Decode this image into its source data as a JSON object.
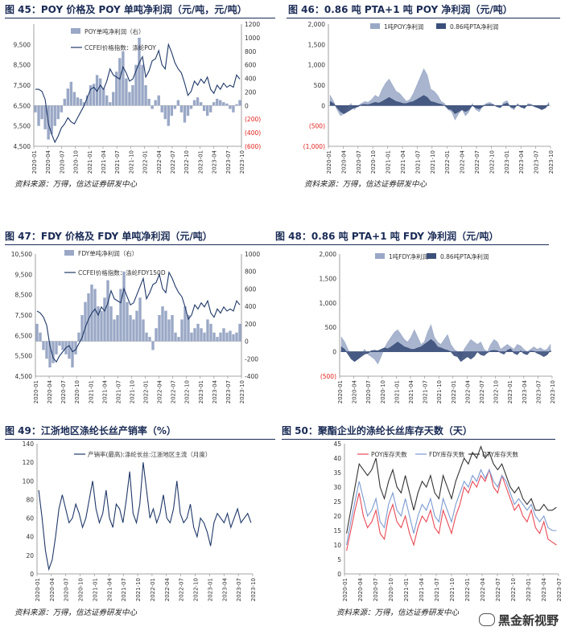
{
  "source_text": "资料来源：万得，信达证券研发中心",
  "watermark": "黑金新视野",
  "chart_data": [
    {
      "id": "c45",
      "title": "图 45：POY 价格及 POY 单吨净利润（元/吨，元/吨）",
      "type": "line+bar",
      "x_ticks": [
        "2020-01",
        "2020-04",
        "2020-07",
        "2020-10",
        "2021-01",
        "2021-04",
        "2021-07",
        "2021-10",
        "2022-01",
        "2022-04",
        "2022-07",
        "2022-10",
        "2023-01",
        "2023-04",
        "2023-07",
        "2023-10"
      ],
      "y_left": {
        "min": 4500,
        "max": 10500,
        "ticks": [
          "4,500",
          "5,500",
          "6,500",
          "7,500",
          "8,500",
          "9,500"
        ]
      },
      "y_right": {
        "min": -600,
        "max": 1200,
        "ticks": [
          "1200",
          "1000",
          "800",
          "600",
          "400",
          "200",
          "0",
          "(200)",
          "(400)",
          "(600)"
        ],
        "neg_color": "#e0201b"
      },
      "series": [
        {
          "name": "POY单吨净利润（右）",
          "kind": "bar",
          "axis": "right",
          "color": "#9aa8c6",
          "values": [
            -100,
            -300,
            -200,
            -350,
            -500,
            -420,
            -300,
            -200,
            -100,
            100,
            250,
            350,
            200,
            120,
            100,
            50,
            150,
            300,
            320,
            450,
            400,
            250,
            150,
            50,
            200,
            500,
            700,
            800,
            400,
            200,
            300,
            600,
            1000,
            600,
            300,
            100,
            -50,
            80,
            150,
            -100,
            -200,
            -300,
            -150,
            -50,
            80,
            -100,
            -250,
            -150,
            -50,
            80,
            120,
            50,
            -80,
            -150,
            -100,
            50,
            100,
            80,
            50,
            30,
            -50,
            -100,
            20,
            80
          ]
        },
        {
          "name": "CCFEI价格指数：涤纶POY",
          "kind": "line",
          "axis": "left",
          "color": "#1f3868",
          "values": [
            7300,
            7300,
            7200,
            6800,
            5600,
            5100,
            4700,
            5000,
            5400,
            5600,
            5900,
            5700,
            5600,
            5900,
            6200,
            6500,
            6900,
            7300,
            7400,
            7200,
            7500,
            7300,
            7700,
            8300,
            8000,
            7900,
            7800,
            8400,
            8100,
            7700,
            7800,
            8200,
            8600,
            8900,
            7900,
            8200,
            8700,
            8800,
            9200,
            8500,
            8300,
            9500,
            9100,
            8600,
            8300,
            8100,
            7600,
            7000,
            7200,
            7700,
            7500,
            7800,
            7600,
            7900,
            7300,
            7100,
            7500,
            7300,
            7600,
            7400,
            7500,
            7400,
            8000,
            7800
          ]
        }
      ]
    },
    {
      "id": "c46",
      "title": "图 46：0.86 吨 PTA+1 吨 POY 净利润（元/吨）",
      "type": "area",
      "x_ticks": [
        "2020-01",
        "2020-04",
        "2020-07",
        "2020-10",
        "2021-01",
        "2021-04",
        "2021-07",
        "2021-10",
        "2022-01",
        "2022-04",
        "2022-07",
        "2022-10",
        "2023-01",
        "2023-04",
        "2023-07",
        "2023-10"
      ],
      "y_left": {
        "min": -1000,
        "max": 2000,
        "ticks": [
          "2,000",
          "1,500",
          "1,000",
          "500",
          "0",
          "(500)",
          "(1,000)"
        ],
        "neg_color": "#e0201b"
      },
      "series": [
        {
          "name": "1吨POY净利润",
          "kind": "area",
          "color": "#9aa8c6",
          "values": [
            250,
            100,
            -100,
            -250,
            -200,
            -50,
            50,
            -100,
            0,
            50,
            100,
            80,
            150,
            250,
            200,
            400,
            550,
            650,
            500,
            350,
            300,
            200,
            100,
            150,
            300,
            500,
            700,
            900,
            750,
            400,
            350,
            250,
            100,
            50,
            -100,
            -150,
            -350,
            -200,
            -100,
            -250,
            -150,
            50,
            -100,
            -150,
            0,
            50,
            80,
            30,
            -30,
            -50,
            80,
            120,
            -50,
            -100,
            50,
            -30,
            -80,
            50,
            30,
            -20,
            -50,
            -100,
            -50,
            80
          ]
        },
        {
          "name": "0.86吨PTA净利润",
          "kind": "area",
          "color": "#3b4f7a",
          "values": [
            100,
            50,
            -50,
            -150,
            -200,
            -150,
            -100,
            -50,
            -30,
            20,
            30,
            20,
            50,
            80,
            60,
            100,
            150,
            200,
            150,
            100,
            80,
            50,
            50,
            80,
            100,
            150,
            200,
            250,
            200,
            100,
            80,
            50,
            30,
            0,
            -80,
            -100,
            -200,
            -150,
            -100,
            -150,
            -100,
            0,
            -60,
            -80,
            -20,
            20,
            30,
            20,
            -20,
            -50,
            30,
            60,
            -30,
            -60,
            20,
            -40,
            -60,
            20,
            10,
            -30,
            -60,
            -100,
            -60,
            30
          ]
        }
      ]
    },
    {
      "id": "c47",
      "title": "图 47：FDY 价格及 FDY 单吨净利润（元/吨）",
      "type": "line+bar",
      "x_ticks": [
        "2020-01",
        "2020-04",
        "2020-07",
        "2020-10",
        "2021-01",
        "2021-04",
        "2021-07",
        "2021-10",
        "2022-01",
        "2022-04",
        "2022-07",
        "2022-10",
        "2023-01",
        "2023-04",
        "2023-07",
        "2023-10"
      ],
      "y_left": {
        "min": 4500,
        "max": 10500,
        "ticks": [
          "10,500",
          "9,500",
          "8,500",
          "7,500",
          "6,500",
          "5,500",
          "4,500"
        ]
      },
      "y_right": {
        "min": -400,
        "max": 1000,
        "ticks": [
          "1000",
          "800",
          "600",
          "400",
          "200",
          "0",
          "-200",
          "-400"
        ]
      },
      "series": [
        {
          "name": "FDY单吨净利润（右）",
          "kind": "bar",
          "axis": "right",
          "color": "#9aa8c6",
          "values": [
            200,
            100,
            -100,
            -200,
            -300,
            -250,
            -150,
            -50,
            -100,
            -150,
            -200,
            -300,
            -150,
            100,
            300,
            450,
            550,
            650,
            600,
            400,
            350,
            500,
            700,
            400,
            250,
            300,
            600,
            800,
            450,
            300,
            250,
            350,
            500,
            250,
            100,
            50,
            -100,
            150,
            300,
            400,
            350,
            250,
            300,
            100,
            50,
            250,
            400,
            300,
            100,
            150,
            200,
            150,
            100,
            250,
            200,
            100,
            50,
            100,
            150,
            100,
            120,
            80,
            100,
            200
          ]
        },
        {
          "name": "CCFEI价格指数：涤纶FDY150D",
          "kind": "line",
          "axis": "left",
          "color": "#1f3868",
          "values": [
            7700,
            7600,
            7400,
            7000,
            6000,
            5400,
            5200,
            5500,
            5700,
            5900,
            6000,
            5700,
            5800,
            6100,
            6400,
            6900,
            7300,
            7600,
            7800,
            7500,
            7900,
            7700,
            8100,
            8700,
            8300,
            8200,
            8100,
            8800,
            8400,
            8000,
            8100,
            8500,
            8900,
            9300,
            8300,
            8600,
            9000,
            9100,
            9500,
            8800,
            8600,
            9600,
            9300,
            8900,
            8600,
            8400,
            7900,
            7300,
            7500,
            8000,
            7800,
            8100,
            7900,
            8200,
            7600,
            7400,
            7800,
            7600,
            7900,
            7700,
            7800,
            7700,
            8200,
            8000
          ]
        }
      ]
    },
    {
      "id": "c48",
      "title": "图 48：0.86 吨 PTA+1 吨 FDY 净利润（元/吨）",
      "type": "area",
      "x_ticks": [
        "2020-01",
        "2020-04",
        "2020-07",
        "2020-10",
        "2021-01",
        "2021-04",
        "2021-07",
        "2021-10",
        "2022-01",
        "2022-04",
        "2022-07",
        "2022-10",
        "2023-01",
        "2023-04",
        "2023-07",
        "2023-10"
      ],
      "y_left": {
        "min": -500,
        "max": 2000,
        "ticks": [
          "2,000",
          "1,500",
          "1,000",
          "500",
          "0",
          "(500)"
        ],
        "neg_color": "#e0201b"
      },
      "series": [
        {
          "name": "1吨FDY净利润",
          "kind": "area",
          "color": "#9aa8c6",
          "values": [
            300,
            200,
            50,
            -100,
            -200,
            -150,
            -50,
            50,
            -50,
            -100,
            -150,
            -250,
            -100,
            80,
            200,
            300,
            400,
            450,
            350,
            250,
            200,
            300,
            450,
            300,
            150,
            200,
            400,
            550,
            300,
            200,
            150,
            250,
            350,
            150,
            50,
            0,
            -150,
            50,
            150,
            250,
            200,
            150,
            200,
            50,
            0,
            150,
            250,
            200,
            50,
            100,
            150,
            100,
            50,
            150,
            120,
            50,
            0,
            50,
            100,
            50,
            80,
            30,
            50,
            150
          ]
        },
        {
          "name": "0.86吨PTA净利润",
          "kind": "area",
          "color": "#3b4f7a",
          "values": [
            100,
            50,
            -50,
            -150,
            -200,
            -150,
            -100,
            -50,
            -30,
            20,
            30,
            20,
            50,
            80,
            60,
            100,
            150,
            200,
            150,
            100,
            80,
            50,
            50,
            80,
            100,
            150,
            200,
            250,
            200,
            100,
            80,
            50,
            30,
            0,
            -80,
            -100,
            -200,
            -150,
            -100,
            -150,
            -100,
            0,
            -60,
            -80,
            -20,
            20,
            30,
            20,
            -20,
            -50,
            30,
            60,
            -30,
            -60,
            20,
            -40,
            -60,
            20,
            10,
            -30,
            -60,
            -100,
            -60,
            30
          ]
        }
      ]
    },
    {
      "id": "c49",
      "title": "图 49：江浙地区涤纶长丝产销率（%）",
      "type": "line",
      "x_ticks": [
        "2020-01",
        "2020-04",
        "2020-07",
        "2020-10",
        "2021-01",
        "2021-04",
        "2021-07",
        "2021-10",
        "2022-01",
        "2022-04",
        "2022-07",
        "2022-10",
        "2023-01",
        "2023-04",
        "2023-07",
        "2023-10"
      ],
      "y_left": {
        "min": 0,
        "max": 140,
        "ticks": [
          "140",
          "120",
          "100",
          "80",
          "60",
          "40",
          "20",
          "0"
        ]
      },
      "series": [
        {
          "name": "产销率(最高):涤纶长丝:江浙地区主流（月度）",
          "kind": "line",
          "color": "#1f3868",
          "values": [
            90,
            60,
            25,
            5,
            15,
            40,
            70,
            85,
            70,
            55,
            60,
            75,
            65,
            50,
            60,
            80,
            100,
            70,
            55,
            65,
            90,
            60,
            50,
            75,
            70,
            55,
            80,
            110,
            65,
            55,
            75,
            120,
            90,
            60,
            70,
            55,
            65,
            85,
            60,
            55,
            70,
            100,
            65,
            55,
            60,
            75,
            50,
            40,
            60,
            55,
            45,
            30,
            55,
            65,
            60,
            55,
            65,
            50,
            60,
            70,
            55,
            60,
            65,
            55
          ]
        }
      ]
    },
    {
      "id": "c50",
      "title": "图 50：聚酯企业的涤纶长丝库存天数（天）",
      "type": "line",
      "x_ticks": [
        "2020-01",
        "2020-04",
        "2020-07",
        "2020-10",
        "2021-01",
        "2021-04",
        "2021-07",
        "2021-10",
        "2022-01",
        "2022-04",
        "2022-07",
        "2022-10",
        "2023-01",
        "2023-04",
        "2023-07"
      ],
      "y_left": {
        "min": 0,
        "max": 45,
        "ticks": [
          "45",
          "40",
          "35",
          "30",
          "25",
          "20",
          "15",
          "10",
          "5",
          "0"
        ]
      },
      "series": [
        {
          "name": "POY库存天数",
          "kind": "line",
          "color": "#e84a55",
          "values": [
            8,
            15,
            22,
            28,
            20,
            16,
            18,
            22,
            14,
            12,
            20,
            24,
            18,
            16,
            20,
            14,
            10,
            16,
            20,
            18,
            22,
            16,
            14,
            22,
            18,
            14,
            20,
            24,
            30,
            28,
            32,
            30,
            34,
            32,
            36,
            30,
            28,
            34,
            30,
            26,
            22,
            24,
            20,
            18,
            22,
            16,
            14,
            18,
            12,
            11,
            10
          ]
        },
        {
          "name": "FDY库存天数",
          "kind": "line",
          "color": "#7b9ad0",
          "values": [
            10,
            18,
            25,
            32,
            26,
            20,
            22,
            26,
            18,
            16,
            24,
            28,
            22,
            20,
            26,
            20,
            14,
            20,
            24,
            22,
            26,
            20,
            18,
            26,
            22,
            18,
            24,
            28,
            32,
            30,
            34,
            32,
            36,
            33,
            36,
            32,
            30,
            34,
            32,
            28,
            24,
            26,
            24,
            22,
            24,
            20,
            18,
            20,
            16,
            15,
            15
          ]
        },
        {
          "name": "DTY库存天数",
          "kind": "line",
          "color": "#333333",
          "values": [
            14,
            22,
            30,
            38,
            36,
            34,
            36,
            40,
            30,
            26,
            32,
            36,
            30,
            28,
            34,
            28,
            22,
            28,
            32,
            30,
            34,
            28,
            26,
            34,
            30,
            26,
            32,
            36,
            40,
            38,
            42,
            40,
            44,
            40,
            42,
            38,
            36,
            38,
            34,
            30,
            28,
            30,
            26,
            24,
            26,
            22,
            22,
            24,
            22,
            22,
            23
          ]
        }
      ]
    }
  ]
}
